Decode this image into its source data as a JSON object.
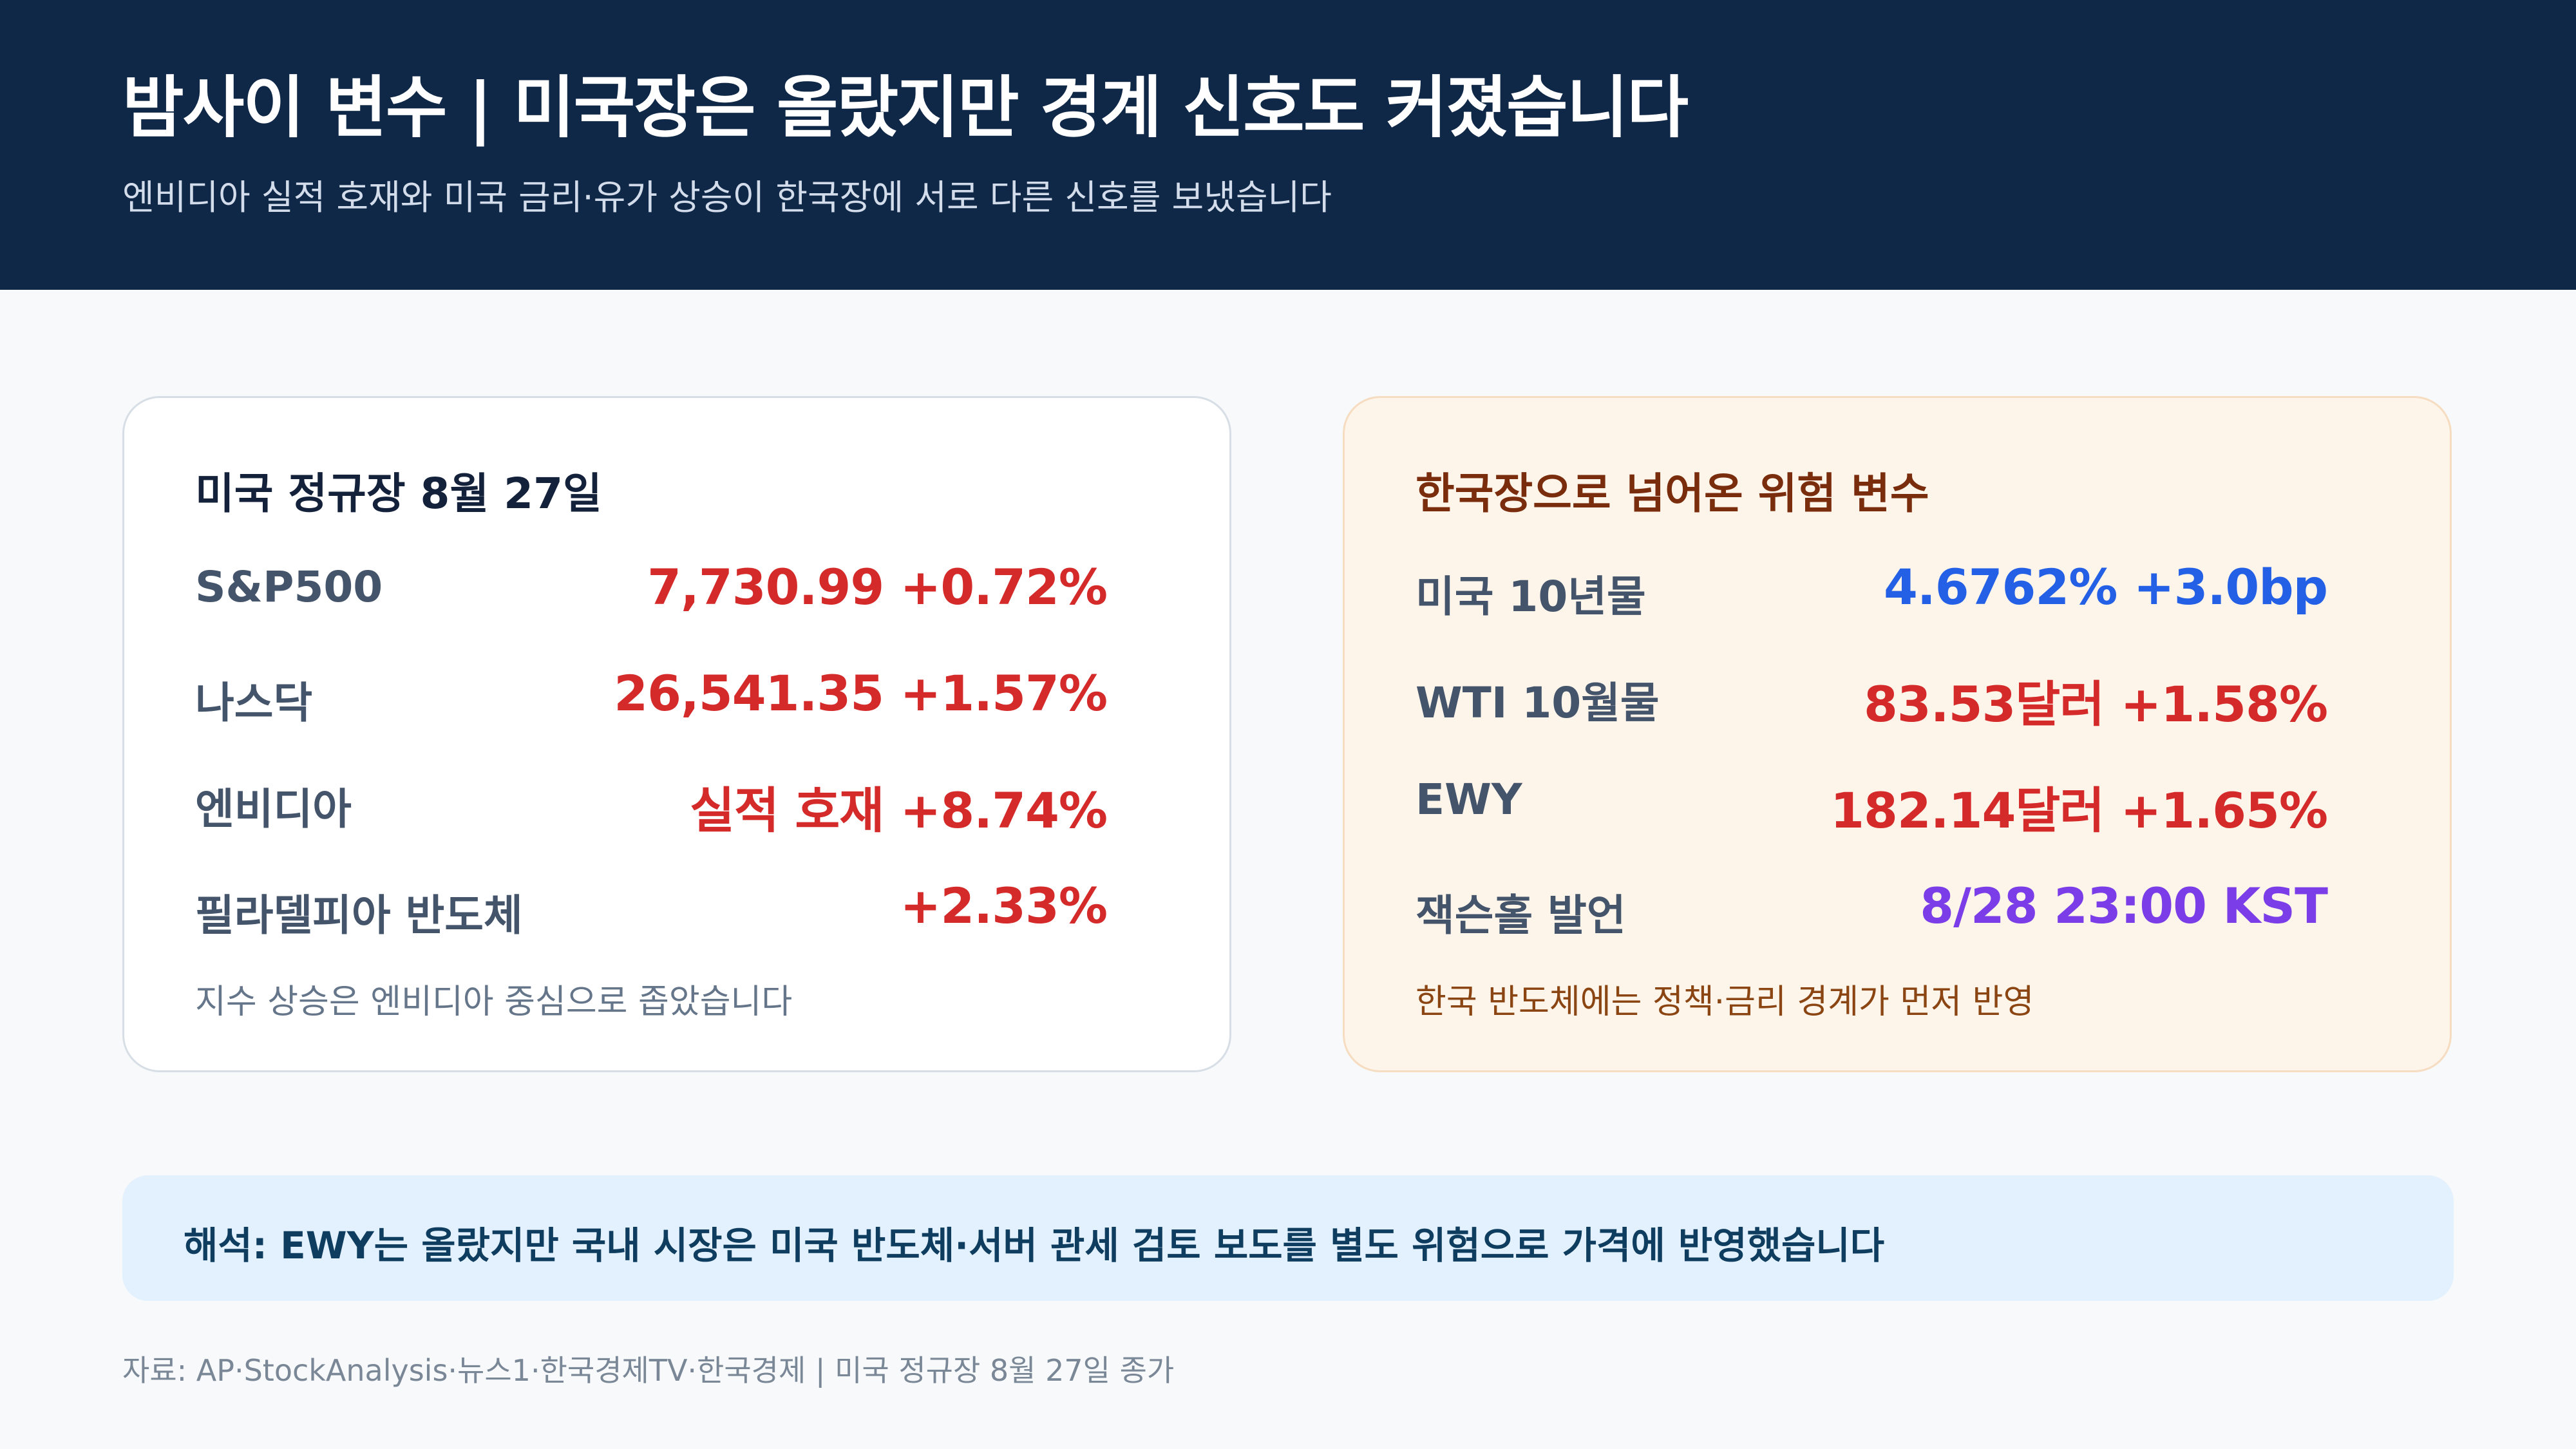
{
  "header": {
    "title": "밤사이 변수 | 미국장은 올랐지만 경계 신호도 커졌습니다",
    "subtitle": "엔비디아 실적 호재와 미국 금리·유가 상승이 한국장에 서로 다른 신호를 보냈습니다",
    "background_color": "#102848"
  },
  "left_card": {
    "title": "미국 정규장 8월 27일",
    "rows": [
      {
        "label": "S&P500",
        "value": "7,730.99 +0.72%",
        "color": "#d42a2a"
      },
      {
        "label": "나스닥",
        "value": "26,541.35 +1.57%",
        "color": "#d42a2a"
      },
      {
        "label": "엔비디아",
        "value": "실적 호재 +8.74%",
        "color": "#d42a2a"
      },
      {
        "label": "필라델피아 반도체",
        "value": "+2.33%",
        "color": "#d42a2a"
      }
    ],
    "note": "지수 상승은 엔비디아 중심으로 좁았습니다"
  },
  "right_card": {
    "title": "한국장으로 넘어온 위험 변수",
    "rows": [
      {
        "label": "미국 10년물",
        "value": "4.6762% +3.0bp",
        "color": "#2460e6"
      },
      {
        "label": "WTI 10월물",
        "value": "83.53달러 +1.58%",
        "color": "#d42a2a"
      },
      {
        "label": "EWY",
        "value": "182.14달러 +1.65%",
        "color": "#d42a2a"
      },
      {
        "label": "잭슨홀 발언",
        "value": "8/28 23:00 KST",
        "color": "#7a3de8"
      }
    ],
    "note": "한국 반도체에는 정책·금리 경계가 먼저 반영"
  },
  "interpretation": {
    "text": "해석: EWY는 올랐지만 국내 시장은 미국 반도체·서버 관세 검토 보도를 별도 위험으로 가격에 반영했습니다"
  },
  "source": {
    "text": "자료: AP·StockAnalysis·뉴스1·한국경제TV·한국경제 | 미국 정규장 8월 27일 종가"
  }
}
